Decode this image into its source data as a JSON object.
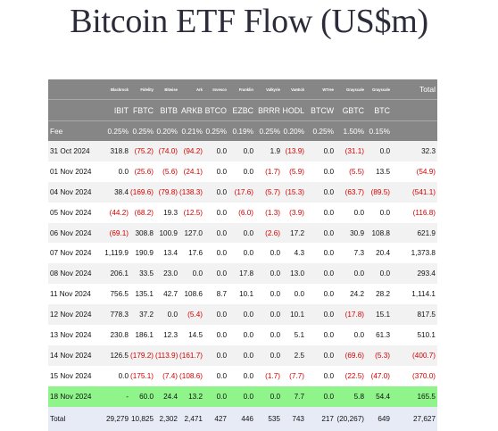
{
  "title": "Bitcoin ETF Flow (US$m)",
  "chart_data": {
    "type": "table",
    "issuers": [
      "Blackrock",
      "Fidelity",
      "Bitwise",
      "Ark",
      "Invesco",
      "Franklin",
      "Valkyrie",
      "VanEck",
      "WTree",
      "Grayscale",
      "Grayscale"
    ],
    "total_header": "Total",
    "tickers": [
      "IBIT",
      "FBTC",
      "BITB",
      "ARKB",
      "BTCO",
      "EZBC",
      "BRRR",
      "HODL",
      "BTCW",
      "GBTC",
      "BTC"
    ],
    "fee_label": "Fee",
    "fees": [
      "0.25%",
      "0.25%",
      "0.20%",
      "0.21%",
      "0.25%",
      "0.19%",
      "0.25%",
      "0.20%",
      "0.25%",
      "1.50%",
      "0.15%",
      ""
    ],
    "rows": [
      {
        "date": "31 Oct 2024",
        "values": [
          "318.8",
          "(75.2)",
          "(74.0)",
          "(94.2)",
          "0.0",
          "0.0",
          "1.9",
          "(13.9)",
          "0.0",
          "(31.1)",
          "0.0",
          "32.3"
        ]
      },
      {
        "date": "01 Nov 2024",
        "values": [
          "0.0",
          "(25.6)",
          "(5.6)",
          "(24.1)",
          "0.0",
          "0.0",
          "(1.7)",
          "(5.9)",
          "0.0",
          "(5.5)",
          "13.5",
          "(54.9)"
        ]
      },
      {
        "date": "04 Nov 2024",
        "values": [
          "38.4",
          "(169.6)",
          "(79.8)",
          "(138.3)",
          "0.0",
          "(17.6)",
          "(5.7)",
          "(15.3)",
          "0.0",
          "(63.7)",
          "(89.5)",
          "(541.1)"
        ]
      },
      {
        "date": "05 Nov 2024",
        "values": [
          "(44.2)",
          "(68.2)",
          "19.3",
          "(12.5)",
          "0.0",
          "(6.0)",
          "(1.3)",
          "(3.9)",
          "0.0",
          "0.0",
          "0.0",
          "(116.8)"
        ]
      },
      {
        "date": "06 Nov 2024",
        "values": [
          "(69.1)",
          "308.8",
          "100.9",
          "127.0",
          "0.0",
          "0.0",
          "(2.6)",
          "17.2",
          "0.0",
          "30.9",
          "108.8",
          "621.9"
        ]
      },
      {
        "date": "07 Nov 2024",
        "values": [
          "1,119.9",
          "190.9",
          "13.4",
          "17.6",
          "0.0",
          "0.0",
          "0.0",
          "4.3",
          "0.0",
          "7.3",
          "20.4",
          "1,373.8"
        ]
      },
      {
        "date": "08 Nov 2024",
        "values": [
          "206.1",
          "33.5",
          "23.0",
          "0.0",
          "0.0",
          "17.8",
          "0.0",
          "13.0",
          "0.0",
          "0.0",
          "0.0",
          "293.4"
        ]
      },
      {
        "date": "11 Nov 2024",
        "values": [
          "756.5",
          "135.1",
          "42.7",
          "108.6",
          "8.7",
          "10.1",
          "0.0",
          "0.0",
          "0.0",
          "24.2",
          "28.2",
          "1,114.1"
        ]
      },
      {
        "date": "12 Nov 2024",
        "values": [
          "778.3",
          "37.2",
          "0.0",
          "(5.4)",
          "0.0",
          "0.0",
          "0.0",
          "10.1",
          "0.0",
          "(17.8)",
          "15.1",
          "817.5"
        ]
      },
      {
        "date": "13 Nov 2024",
        "values": [
          "230.8",
          "186.1",
          "12.3",
          "14.5",
          "0.0",
          "0.0",
          "0.0",
          "5.1",
          "0.0",
          "0.0",
          "61.3",
          "510.1"
        ]
      },
      {
        "date": "14 Nov 2024",
        "values": [
          "126.5",
          "(179.2)",
          "(113.9)",
          "(161.7)",
          "0.0",
          "0.0",
          "0.0",
          "2.5",
          "0.0",
          "(69.6)",
          "(5.3)",
          "(400.7)"
        ]
      },
      {
        "date": "15 Nov 2024",
        "values": [
          "0.0",
          "(175.1)",
          "(7.4)",
          "(108.6)",
          "0.0",
          "0.0",
          "(1.7)",
          "(7.7)",
          "0.0",
          "(22.5)",
          "(47.0)",
          "(370.0)"
        ]
      },
      {
        "date": "18 Nov 2024",
        "values": [
          "-",
          "60.0",
          "24.4",
          "13.2",
          "0.0",
          "0.0",
          "0.0",
          "7.7",
          "0.0",
          "5.8",
          "54.4",
          "165.5"
        ],
        "highlight": true
      }
    ],
    "total_label": "Total",
    "totals": [
      "29,279",
      "10,825",
      "2,302",
      "2,471",
      "427",
      "446",
      "535",
      "743",
      "217",
      "(20,267)",
      "649",
      "27,627"
    ],
    "colors": {
      "header_bg": "#868686",
      "header_text": "#ffffff",
      "negative": "#d40000",
      "alt_row": "#f2f2f2",
      "highlight_row": "#8ff58b",
      "total_row": "#e7ebf6"
    }
  }
}
